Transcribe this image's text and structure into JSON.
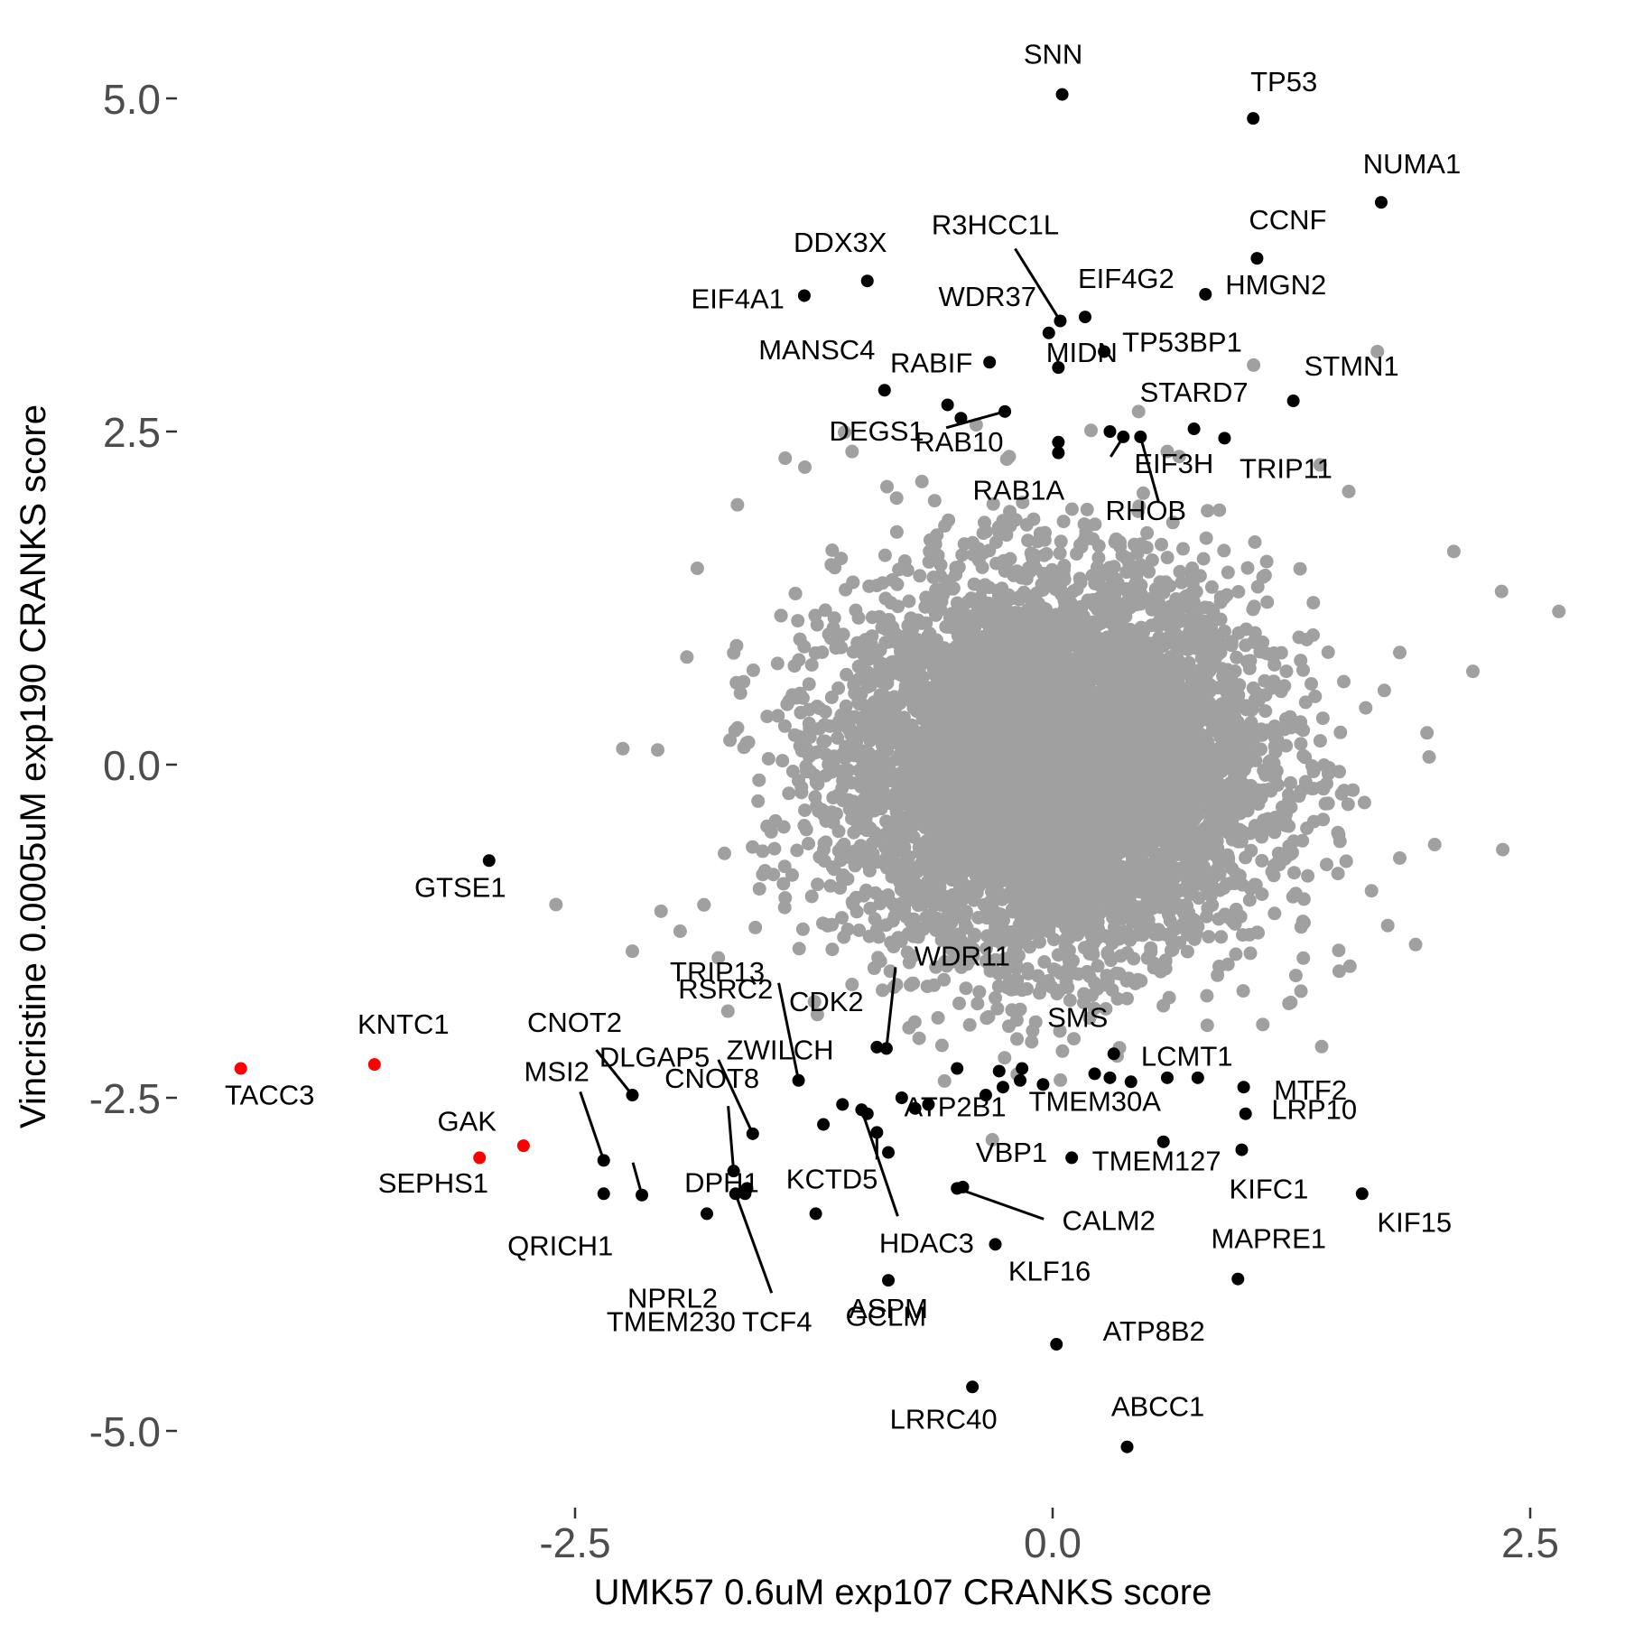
{
  "chart_data": {
    "type": "scatter",
    "title": "",
    "xlabel": "UMK57 0.6uM exp107 CRANKS score",
    "ylabel": "Vincristine 0.0005uM exp190 CRANKS score",
    "xlim": [
      -4.5,
      2.85
    ],
    "ylim": [
      -5.6,
      5.65
    ],
    "x_ticks": [
      -2.5,
      0.0,
      2.5
    ],
    "x_tick_labels": [
      "-2.5",
      "0.0",
      "2.5"
    ],
    "y_ticks": [
      5.0,
      2.5,
      0.0,
      -2.5,
      -5.0
    ],
    "y_tick_labels": [
      "5.0",
      "2.5",
      "0.0",
      "-2.5",
      "-5.0"
    ],
    "grid": false,
    "legend": "none",
    "colors": {
      "background_genes": "#a0a0a0",
      "highlighted_genes": "#000000",
      "red_genes": "#ff0000"
    },
    "background_cloud": {
      "description_hidden": true,
      "center": [
        0.0,
        0.0
      ],
      "sd": [
        0.55,
        0.7
      ],
      "count": 7000,
      "outliers": [
        [
          -2.25,
          0.12
        ],
        [
          -1.75,
          -1.45
        ],
        [
          -2.05,
          -1.1
        ],
        [
          -1.95,
          -1.25
        ],
        [
          -1.7,
          -1.85
        ],
        [
          -1.4,
          -1.0
        ],
        [
          -0.85,
          -1.55
        ],
        [
          -0.6,
          -1.9
        ],
        [
          -2.6,
          -1.05
        ],
        [
          -2.2,
          -1.4
        ],
        [
          -1.65,
          1.95
        ],
        [
          -1.4,
          2.3
        ],
        [
          -1.05,
          2.35
        ],
        [
          -0.4,
          2.55
        ],
        [
          0.45,
          2.65
        ],
        [
          0.6,
          2.35
        ],
        [
          1.4,
          2.25
        ],
        [
          1.55,
          2.05
        ],
        [
          1.7,
          3.1
        ],
        [
          2.1,
          1.6
        ],
        [
          2.35,
          1.3
        ],
        [
          2.65,
          1.15
        ],
        [
          2.2,
          0.7
        ],
        [
          2.0,
          -0.6
        ],
        [
          1.9,
          -1.35
        ],
        [
          1.5,
          -1.55
        ],
        [
          1.1,
          -1.95
        ],
        [
          1.3,
          -1.7
        ],
        [
          -1.05,
          -1.65
        ],
        [
          -0.3,
          -1.75
        ]
      ]
    },
    "labeled_points": [
      {
        "label": "SNN",
        "x": 0.05,
        "y": 5.03,
        "color": "#000000"
      },
      {
        "label": "TP53",
        "x": 1.05,
        "y": 4.85,
        "color": "#000000"
      },
      {
        "label": "NUMA1",
        "x": 1.72,
        "y": 4.22,
        "color": "#000000"
      },
      {
        "label": "CCNF",
        "x": 1.07,
        "y": 3.8,
        "color": "#000000"
      },
      {
        "label": "HMGN2",
        "x": 0.8,
        "y": 3.53,
        "color": "#000000"
      },
      {
        "label": "DDX3X",
        "x": -0.97,
        "y": 3.63,
        "color": "#000000"
      },
      {
        "label": "EIF4A1",
        "x": -1.3,
        "y": 3.52,
        "color": "#000000"
      },
      {
        "label": "R3HCC1L",
        "x": 0.04,
        "y": 3.33,
        "color": "#000000"
      },
      {
        "label": "WDR37",
        "x": -0.02,
        "y": 3.24,
        "color": "#000000"
      },
      {
        "label": "EIF4G2",
        "x": 0.17,
        "y": 3.36,
        "color": "#000000"
      },
      {
        "label": "TP53BP1",
        "x": 0.27,
        "y": 3.1,
        "color": "#000000"
      },
      {
        "label": "STMN1",
        "x": 1.26,
        "y": 2.73,
        "color": "#000000"
      },
      {
        "label": "MANSC4",
        "x": -0.88,
        "y": 2.81,
        "color": "#000000"
      },
      {
        "label": "RABIF",
        "x": -0.55,
        "y": 2.7,
        "color": "#000000"
      },
      {
        "label": "DEGS1",
        "x": -0.25,
        "y": 2.65,
        "color": "#000000"
      },
      {
        "label": "MIDN",
        "x": 0.03,
        "y": 2.98,
        "color": "#000000"
      },
      {
        "label": "STARD7",
        "x": 0.74,
        "y": 2.52,
        "color": "#000000"
      },
      {
        "label": "TRIP11",
        "x": 0.9,
        "y": 2.45,
        "color": "#000000"
      },
      {
        "label": "RAB10",
        "x": 0.03,
        "y": 2.42,
        "color": "#000000"
      },
      {
        "label": "RAB1A",
        "x": 0.03,
        "y": 2.34,
        "color": "#000000"
      },
      {
        "label": "EIF3H",
        "x": 0.37,
        "y": 2.46,
        "color": "#000000"
      },
      {
        "label": "RHOB",
        "x": 0.46,
        "y": 2.46,
        "color": "#000000"
      },
      {
        "label": "GTSE1",
        "x": -2.95,
        "y": -0.72,
        "color": "#000000"
      },
      {
        "label": "KNTC1",
        "x": -3.55,
        "y": -2.25,
        "color": "#ff0000"
      },
      {
        "label": "TACC3",
        "x": -4.25,
        "y": -2.28,
        "color": "#ff0000"
      },
      {
        "label": "GAK",
        "x": -3.0,
        "y": -2.95,
        "color": "#ff0000"
      },
      {
        "label": "SEPHS1",
        "x": -2.77,
        "y": -2.86,
        "color": "#ff0000"
      },
      {
        "label": "CNOT2",
        "x": -2.2,
        "y": -2.48,
        "color": "#000000"
      },
      {
        "label": "MSI2",
        "x": -2.35,
        "y": -2.97,
        "color": "#000000"
      },
      {
        "label": "DLGAP5",
        "x": -2.15,
        "y": -3.23,
        "color": "#000000"
      },
      {
        "label": "QRICH1",
        "x": -2.35,
        "y": -3.22,
        "color": "#000000"
      },
      {
        "label": "DPH1",
        "x": -1.6,
        "y": -3.18,
        "color": "#000000"
      },
      {
        "label": "TRIP13",
        "x": -1.33,
        "y": -2.37,
        "color": "#000000"
      },
      {
        "label": "RSRC2",
        "x": -1.57,
        "y": -2.77,
        "color": "#000000"
      },
      {
        "label": "CNOT8",
        "x": -1.67,
        "y": -3.05,
        "color": "#000000"
      },
      {
        "label": "ZWILCH",
        "x": -1.2,
        "y": -2.7,
        "color": "#000000"
      },
      {
        "label": "CDK2",
        "x": -0.92,
        "y": -2.12,
        "color": "#000000"
      },
      {
        "label": "WDR11",
        "x": -0.87,
        "y": -2.13,
        "color": "#000000"
      },
      {
        "label": "KCTD5",
        "x": -1.24,
        "y": -3.37,
        "color": "#000000"
      },
      {
        "label": "NPRL2",
        "x": -1.81,
        "y": -3.37,
        "color": "#000000"
      },
      {
        "label": "TMEM230",
        "x": -1.61,
        "y": -3.22,
        "color": "#000000"
      },
      {
        "label": "TCF4",
        "x": -1.66,
        "y": -3.22,
        "color": "#000000"
      },
      {
        "label": "ATP2B1",
        "x": -0.86,
        "y": -2.91,
        "color": "#000000"
      },
      {
        "label": "GCLM",
        "x": -0.92,
        "y": -2.76,
        "color": "#000000"
      },
      {
        "label": "HDAC3",
        "x": -1.0,
        "y": -2.59,
        "color": "#000000"
      },
      {
        "label": "ASPM",
        "x": -0.86,
        "y": -3.87,
        "color": "#000000"
      },
      {
        "label": "VBP1",
        "x": -0.47,
        "y": -3.17,
        "color": "#000000"
      },
      {
        "label": "CALM2",
        "x": -0.5,
        "y": -3.18,
        "color": "#000000"
      },
      {
        "label": "KLF16",
        "x": -0.3,
        "y": -3.6,
        "color": "#000000"
      },
      {
        "label": "SMS",
        "x": 0.32,
        "y": -2.17,
        "color": "#000000"
      },
      {
        "label": "LCMT1",
        "x": 0.41,
        "y": -2.38,
        "color": "#000000"
      },
      {
        "label": "TMEM30A",
        "x": 0.58,
        "y": -2.83,
        "color": "#000000"
      },
      {
        "label": "TMEM127",
        "x": 0.1,
        "y": -2.95,
        "color": "#000000"
      },
      {
        "label": "MTF2",
        "x": 1.0,
        "y": -2.42,
        "color": "#000000"
      },
      {
        "label": "LRP10",
        "x": 1.01,
        "y": -2.62,
        "color": "#000000"
      },
      {
        "label": "KIFC1",
        "x": 0.99,
        "y": -2.89,
        "color": "#000000"
      },
      {
        "label": "KIF15",
        "x": 1.62,
        "y": -3.22,
        "color": "#000000"
      },
      {
        "label": "MAPRE1",
        "x": 0.97,
        "y": -3.86,
        "color": "#000000"
      },
      {
        "label": "ATP8B2",
        "x": 0.02,
        "y": -4.35,
        "color": "#000000"
      },
      {
        "label": "LRRC40",
        "x": -0.42,
        "y": -4.67,
        "color": "#000000"
      },
      {
        "label": "ABCC1",
        "x": 0.39,
        "y": -5.12,
        "color": "#000000"
      }
    ],
    "extra_highlighted_points": [
      [
        -0.48,
        2.6
      ],
      [
        -0.33,
        3.02
      ],
      [
        0.3,
        2.5
      ],
      [
        0.6,
        -2.35
      ],
      [
        0.76,
        -2.35
      ],
      [
        -0.5,
        -2.28
      ],
      [
        -0.28,
        -2.3
      ],
      [
        -0.16,
        -2.28
      ],
      [
        0.22,
        -2.32
      ],
      [
        0.3,
        -2.35
      ],
      [
        -0.26,
        -2.42
      ],
      [
        -0.17,
        -2.37
      ],
      [
        -0.05,
        -2.4
      ],
      [
        -0.35,
        -2.48
      ],
      [
        -0.65,
        -2.55
      ],
      [
        -0.79,
        -2.5
      ],
      [
        -0.97,
        -2.62
      ],
      [
        -0.72,
        -2.58
      ],
      [
        -1.1,
        -2.55
      ]
    ]
  },
  "labels_render": {
    "SNN": {
      "ax": 0,
      "ay": -26,
      "anchor": "middle"
    },
    "TP53": {
      "ax": 32,
      "ay": -26,
      "anchor": "middle"
    },
    "NUMA1": {
      "ax": 30,
      "ay": -30,
      "anchor": "middle"
    }
  }
}
